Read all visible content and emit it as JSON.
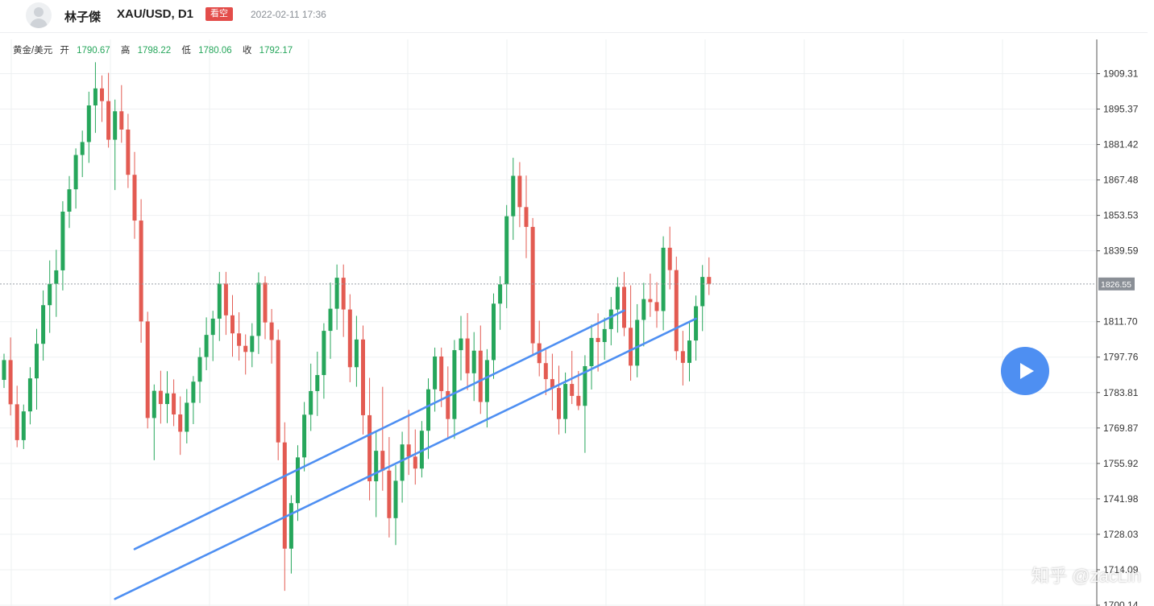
{
  "header": {
    "author": "林子傑",
    "symbol": "XAU/USD, D1",
    "badge": "看空",
    "date": "2022-02-11 17:36"
  },
  "ohlc": {
    "instrument": "黄金/美元",
    "open_label": "开",
    "open": "1790.67",
    "high_label": "高",
    "high": "1798.22",
    "low_label": "低",
    "low": "1780.06",
    "close_label": "收",
    "close": "1792.17"
  },
  "colors": {
    "up": "#26a65b",
    "down": "#e35b52",
    "trendline": "#4e8ff2",
    "badge": "#e34d4a"
  },
  "chart_data": {
    "type": "candlestick",
    "y_ticks": [
      "1909.31",
      "1895.37",
      "1881.42",
      "1867.48",
      "1853.53",
      "1839.59",
      "1811.70",
      "1797.76",
      "1783.81",
      "1769.87",
      "1755.92",
      "1741.98",
      "1728.03",
      "1714.09",
      "1700.14"
    ],
    "y_tick_values": [
      1909.31,
      1895.37,
      1881.42,
      1867.48,
      1853.53,
      1839.59,
      1811.7,
      1797.76,
      1783.81,
      1769.87,
      1755.92,
      1741.98,
      1728.03,
      1714.09,
      1700.14
    ],
    "current_price": "1826.55",
    "current_price_value": 1826.55,
    "ylim": [
      1700.14,
      1909.31
    ],
    "grid": true,
    "trendlines": [
      {
        "from": [
          20,
          1722.2
        ],
        "to": [
          95,
          1816.1
        ]
      },
      {
        "from": [
          17,
          1702.6
        ],
        "to": [
          106,
          1812.9
        ]
      }
    ],
    "candles": [
      [
        1788.8,
        1799.1,
        1785.6,
        1796.6
      ],
      [
        1796.6,
        1805.5,
        1774.8,
        1779.2
      ],
      [
        1779.2,
        1786.5,
        1762.3,
        1765.1
      ],
      [
        1765.1,
        1779.1,
        1761.6,
        1776.4
      ],
      [
        1776.4,
        1793.8,
        1771.3,
        1789.4
      ],
      [
        1789.4,
        1808.9,
        1777.1,
        1803.0
      ],
      [
        1803.0,
        1824.0,
        1796.4,
        1818.2
      ],
      [
        1818.2,
        1835.8,
        1807.3,
        1826.6
      ],
      [
        1826.6,
        1840.0,
        1813.6,
        1831.9
      ],
      [
        1831.9,
        1859.1,
        1824.0,
        1855.0
      ],
      [
        1855.0,
        1869.0,
        1848.6,
        1863.8
      ],
      [
        1863.8,
        1879.9,
        1856.2,
        1877.3
      ],
      [
        1877.3,
        1886.9,
        1868.6,
        1882.4
      ],
      [
        1882.4,
        1902.2,
        1874.2,
        1896.8
      ],
      [
        1896.8,
        1913.8,
        1886.0,
        1903.5
      ],
      [
        1903.5,
        1908.6,
        1890.3,
        1898.5
      ],
      [
        1898.5,
        1909.6,
        1880.2,
        1883.3
      ],
      [
        1883.3,
        1899.1,
        1863.5,
        1894.5
      ],
      [
        1894.5,
        1904.8,
        1882.1,
        1887.3
      ],
      [
        1887.3,
        1893.5,
        1864.3,
        1869.5
      ],
      [
        1869.5,
        1878.5,
        1844.3,
        1851.5
      ],
      [
        1851.5,
        1859.9,
        1803.4,
        1811.8
      ],
      [
        1811.8,
        1815.6,
        1769.7,
        1773.8
      ],
      [
        1773.8,
        1787.0,
        1757.2,
        1784.5
      ],
      [
        1784.5,
        1792.4,
        1771.6,
        1779.3
      ],
      [
        1779.3,
        1792.2,
        1771.8,
        1783.5
      ],
      [
        1783.5,
        1789.0,
        1770.6,
        1775.2
      ],
      [
        1775.2,
        1782.3,
        1759.3,
        1768.4
      ],
      [
        1768.4,
        1785.2,
        1763.8,
        1779.8
      ],
      [
        1779.8,
        1790.3,
        1771.4,
        1788.1
      ],
      [
        1788.1,
        1801.5,
        1779.7,
        1797.8
      ],
      [
        1797.8,
        1813.4,
        1792.6,
        1806.5
      ],
      [
        1806.5,
        1816.0,
        1796.2,
        1812.9
      ],
      [
        1812.9,
        1831.3,
        1804.1,
        1826.7
      ],
      [
        1826.7,
        1831.3,
        1806.5,
        1814.2
      ],
      [
        1814.2,
        1822.2,
        1797.9,
        1807.1
      ],
      [
        1807.1,
        1815.4,
        1796.4,
        1802.2
      ],
      [
        1802.2,
        1806.7,
        1790.9,
        1799.8
      ],
      [
        1799.8,
        1811.1,
        1793.8,
        1806.1
      ],
      [
        1806.1,
        1831.1,
        1799.0,
        1827.0
      ],
      [
        1827.0,
        1829.6,
        1804.8,
        1811.4
      ],
      [
        1811.4,
        1816.7,
        1795.2,
        1804.5
      ],
      [
        1804.5,
        1808.6,
        1757.2,
        1764.2
      ],
      [
        1764.2,
        1772.1,
        1705.8,
        1722.4
      ],
      [
        1722.4,
        1743.4,
        1712.6,
        1740.3
      ],
      [
        1740.3,
        1763.1,
        1733.3,
        1758.3
      ],
      [
        1758.3,
        1780.1,
        1752.8,
        1775.1
      ],
      [
        1775.1,
        1795.2,
        1768.7,
        1784.4
      ],
      [
        1784.4,
        1799.9,
        1774.6,
        1790.7
      ],
      [
        1790.7,
        1811.1,
        1781.4,
        1808.1
      ],
      [
        1808.1,
        1827.1,
        1797.1,
        1816.8
      ],
      [
        1816.8,
        1834.2,
        1808.5,
        1829.0
      ],
      [
        1829.0,
        1834.2,
        1805.7,
        1816.5
      ],
      [
        1816.5,
        1822.5,
        1787.9,
        1793.8
      ],
      [
        1793.8,
        1814.0,
        1786.1,
        1804.7
      ],
      [
        1804.7,
        1810.2,
        1767.3,
        1774.9
      ],
      [
        1774.9,
        1789.6,
        1741.4,
        1748.9
      ],
      [
        1748.9,
        1768.4,
        1734.8,
        1760.9
      ],
      [
        1760.9,
        1786.1,
        1745.2,
        1753.1
      ],
      [
        1753.1,
        1766.3,
        1726.8,
        1734.4
      ],
      [
        1734.4,
        1755.3,
        1723.8,
        1749.1
      ],
      [
        1749.1,
        1768.4,
        1740.5,
        1763.4
      ],
      [
        1763.4,
        1777.0,
        1751.4,
        1758.6
      ],
      [
        1758.6,
        1769.3,
        1747.6,
        1753.9
      ],
      [
        1753.9,
        1772.6,
        1750.4,
        1768.8
      ],
      [
        1768.8,
        1789.4,
        1757.7,
        1785.1
      ],
      [
        1785.1,
        1801.5,
        1776.3,
        1798.0
      ],
      [
        1798.0,
        1801.5,
        1778.1,
        1784.4
      ],
      [
        1784.4,
        1794.1,
        1765.6,
        1773.4
      ],
      [
        1773.4,
        1804.5,
        1765.6,
        1800.5
      ],
      [
        1800.5,
        1814.0,
        1788.6,
        1805.1
      ],
      [
        1805.1,
        1815.1,
        1784.8,
        1791.4
      ],
      [
        1791.4,
        1807.6,
        1780.5,
        1800.3
      ],
      [
        1800.3,
        1810.2,
        1775.4,
        1780.1
      ],
      [
        1780.1,
        1800.9,
        1770.1,
        1796.6
      ],
      [
        1796.6,
        1822.8,
        1789.2,
        1818.8
      ],
      [
        1818.8,
        1829.6,
        1808.5,
        1826.4
      ],
      [
        1826.4,
        1857.6,
        1817.0,
        1853.2
      ],
      [
        1853.2,
        1876.2,
        1843.9,
        1869.1
      ],
      [
        1869.1,
        1874.5,
        1848.9,
        1856.8
      ],
      [
        1856.8,
        1869.2,
        1836.7,
        1849.0
      ],
      [
        1849.0,
        1852.5,
        1799.0,
        1803.2
      ],
      [
        1803.2,
        1812.1,
        1790.2,
        1795.4
      ],
      [
        1795.4,
        1800.6,
        1782.8,
        1789.1
      ],
      [
        1789.1,
        1799.1,
        1776.8,
        1785.6
      ],
      [
        1785.6,
        1794.4,
        1767.3,
        1773.4
      ],
      [
        1773.4,
        1791.7,
        1767.8,
        1787.2
      ],
      [
        1787.2,
        1800.2,
        1779.3,
        1782.5
      ],
      [
        1782.5,
        1792.3,
        1776.9,
        1778.6
      ],
      [
        1778.6,
        1798.5,
        1760.1,
        1794.2
      ],
      [
        1794.2,
        1810.6,
        1785.0,
        1805.3
      ],
      [
        1805.3,
        1815.0,
        1792.1,
        1803.7
      ],
      [
        1803.7,
        1813.3,
        1796.7,
        1808.8
      ],
      [
        1808.8,
        1821.4,
        1802.4,
        1816.5
      ],
      [
        1816.5,
        1829.2,
        1807.4,
        1825.4
      ],
      [
        1825.4,
        1831.3,
        1806.0,
        1809.3
      ],
      [
        1809.3,
        1826.0,
        1788.5,
        1794.4
      ],
      [
        1794.4,
        1818.6,
        1789.8,
        1812.4
      ],
      [
        1812.4,
        1827.0,
        1802.0,
        1820.6
      ],
      [
        1820.6,
        1830.6,
        1813.6,
        1819.4
      ],
      [
        1819.4,
        1827.2,
        1809.3,
        1815.9
      ],
      [
        1815.9,
        1845.3,
        1808.3,
        1840.8
      ],
      [
        1840.8,
        1849.1,
        1824.4,
        1832.0
      ],
      [
        1832.0,
        1837.3,
        1796.6,
        1800.1
      ],
      [
        1800.1,
        1808.1,
        1786.6,
        1795.5
      ],
      [
        1795.5,
        1811.5,
        1788.2,
        1804.3
      ],
      [
        1804.3,
        1822.0,
        1796.4,
        1817.8
      ],
      [
        1817.8,
        1834.0,
        1808.0,
        1829.3
      ],
      [
        1829.3,
        1837.0,
        1822.2,
        1826.6
      ]
    ]
  },
  "play_button": {
    "icon": "play-icon"
  },
  "watermark": "知乎 @zacLin"
}
